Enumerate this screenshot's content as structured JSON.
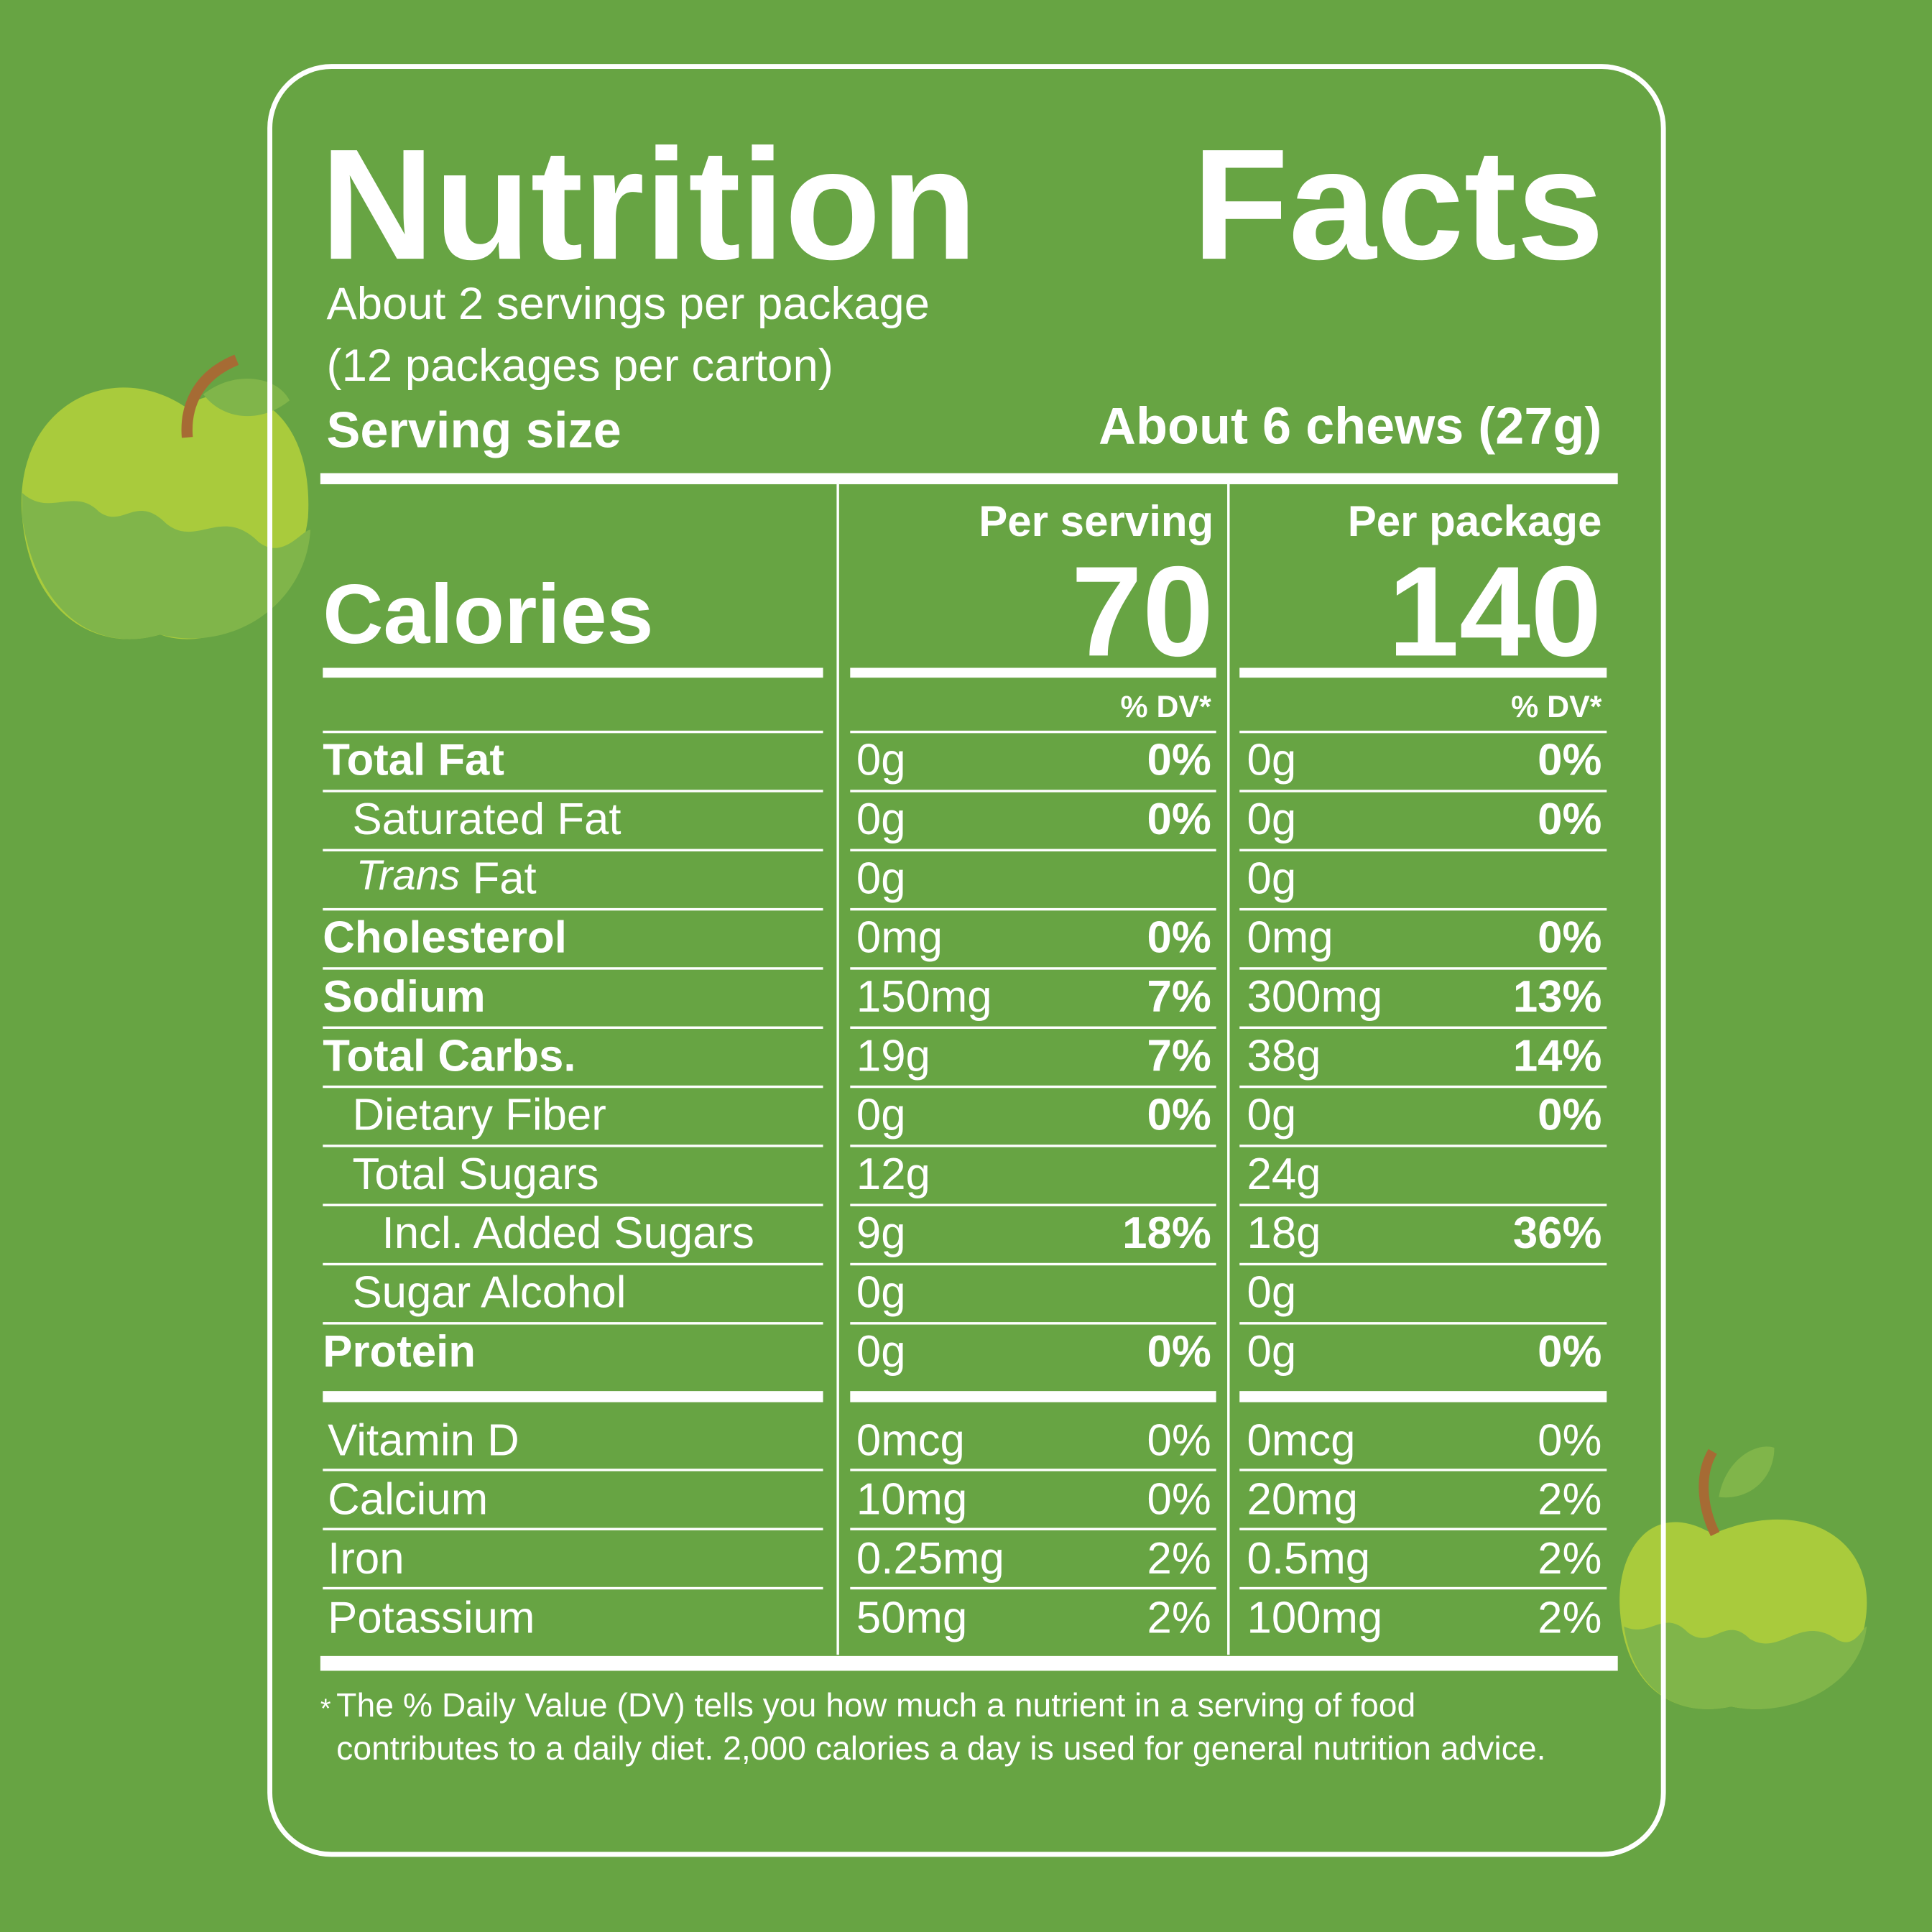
{
  "header": {
    "title": "Nutrition Facts",
    "servings": "About 2 servings per package",
    "packages": "(12 packages per carton)",
    "serving_size_label": "Serving size",
    "serving_size": "About 6 chews (27g)"
  },
  "columns": [
    "Per serving",
    "Per package"
  ],
  "calories": {
    "label": "Calories",
    "values": [
      "70",
      "140"
    ]
  },
  "dv_header": "% DV*",
  "nutrients": [
    {
      "name": "Total Fat",
      "bold": true,
      "indent": 0,
      "serving": [
        "0g",
        "0%"
      ],
      "package": [
        "0g",
        "0%"
      ]
    },
    {
      "name": "Saturated Fat",
      "bold": false,
      "indent": 1,
      "serving": [
        "0g",
        "0%"
      ],
      "package": [
        "0g",
        "0%"
      ]
    },
    {
      "name_italic": "Trans",
      "name": "Fat",
      "bold": false,
      "indent": 1,
      "serving": [
        "0g"
      ],
      "package": [
        "0g"
      ]
    },
    {
      "name": "Cholesterol",
      "bold": true,
      "indent": 0,
      "serving": [
        "0mg",
        "0%"
      ],
      "package": [
        "0mg",
        "0%"
      ]
    },
    {
      "name": "Sodium",
      "bold": true,
      "indent": 0,
      "serving": [
        "150mg",
        "7%"
      ],
      "package": [
        "300mg",
        "13%"
      ]
    },
    {
      "name": "Total Carbs.",
      "bold": true,
      "indent": 0,
      "serving": [
        "19g",
        "7%"
      ],
      "package": [
        "38g",
        "14%"
      ]
    },
    {
      "name": "Dietary Fiber",
      "bold": false,
      "indent": 1,
      "serving": [
        "0g",
        "0%"
      ],
      "package": [
        "0g",
        "0%"
      ]
    },
    {
      "name": "Total Sugars",
      "bold": false,
      "indent": 1,
      "serving": [
        "12g"
      ],
      "package": [
        "24g"
      ]
    },
    {
      "name": "Incl. Added Sugars",
      "bold": false,
      "indent": 2,
      "serving": [
        "9g",
        "18%"
      ],
      "package": [
        "18g",
        "36%"
      ]
    },
    {
      "name": "Sugar Alcohol",
      "bold": false,
      "indent": 1,
      "serving": [
        "0g"
      ],
      "package": [
        "0g"
      ]
    },
    {
      "name": "Protein",
      "bold": true,
      "indent": 0,
      "serving": [
        "0g",
        "0%"
      ],
      "package": [
        "0g",
        "0%"
      ]
    }
  ],
  "vitamins": [
    {
      "name": "Vitamin D",
      "serving": [
        "0mcg",
        "0%"
      ],
      "package": [
        "0mcg",
        "0%"
      ]
    },
    {
      "name": "Calcium",
      "serving": [
        "10mg",
        "0%"
      ],
      "package": [
        "20mg",
        "2%"
      ]
    },
    {
      "name": "Iron",
      "serving": [
        "0.25mg",
        "2%"
      ],
      "package": [
        "0.5mg",
        "2%"
      ]
    },
    {
      "name": "Potassium",
      "serving": [
        "50mg",
        "2%"
      ],
      "package": [
        "100mg",
        "2%"
      ]
    }
  ],
  "footnote": {
    "marker": "*",
    "lines": [
      "The % Daily Value (DV) tells you how much a nutrient in a serving of food",
      "contributes to a daily diet. 2,000 calories a day is used for general nutrition advice."
    ]
  }
}
